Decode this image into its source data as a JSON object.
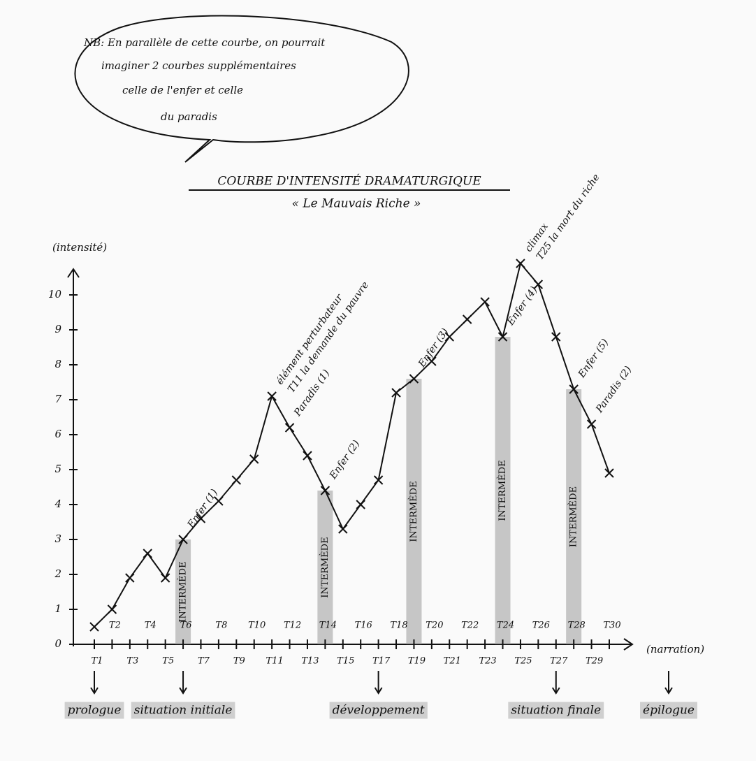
{
  "chart_data": {
    "type": "line",
    "note_lines": [
      "NB: En parallèle de cette courbe, on pourrait",
      "imaginer 2 courbes supplémentaires",
      "celle de l'enfer et celle",
      "du paradis"
    ],
    "title": "COURBE D'INTENSITÉ DRAMATURGIQUE",
    "subtitle": "« Le Mauvais Riche »",
    "y_label": "(intensité)",
    "x_label": "(narration)",
    "categories": [
      "T1",
      "T2",
      "T3",
      "T4",
      "T5",
      "T6",
      "T7",
      "T8",
      "T9",
      "T10",
      "T11",
      "T12",
      "T13",
      "T14",
      "T15",
      "T16",
      "T17",
      "T18",
      "T19",
      "T20",
      "T21",
      "T22",
      "T23",
      "T24",
      "T25",
      "T26",
      "T27",
      "T28",
      "T29",
      "T30"
    ],
    "values": [
      0.5,
      1.0,
      1.9,
      2.6,
      1.9,
      3.0,
      3.6,
      4.1,
      4.7,
      5.3,
      7.1,
      6.2,
      5.4,
      4.4,
      3.3,
      4.0,
      4.7,
      7.2,
      7.6,
      8.1,
      8.8,
      9.3,
      9.8,
      8.8,
      10.9,
      10.3,
      8.8,
      7.3,
      6.3,
      4.9
    ],
    "color": "#111111",
    "ylim": [
      0,
      11
    ],
    "yticks": [
      0,
      1,
      2,
      3,
      4,
      5,
      6,
      7,
      8,
      9,
      10
    ],
    "point_labels": [
      null,
      null,
      null,
      null,
      null,
      "Enfer (1)",
      null,
      null,
      null,
      null,
      [
        "élément perturbateur",
        "T11 la demande du pauvre"
      ],
      "Paradis (1)",
      null,
      "Enfer (2)",
      null,
      null,
      null,
      null,
      "Enfer (3)",
      null,
      null,
      null,
      null,
      "Enfer (4)",
      [
        "climax",
        "T25 la mort du riche"
      ],
      null,
      null,
      "Enfer (5)",
      "Paradis (2)",
      null
    ],
    "intermedes": [
      null,
      null,
      null,
      null,
      null,
      "INTERMÈDE",
      null,
      null,
      null,
      null,
      null,
      null,
      null,
      "INTERMÈDE",
      null,
      null,
      null,
      null,
      "INTERMÈDE",
      null,
      null,
      null,
      null,
      "INTERMÈDE",
      null,
      null,
      null,
      "INTERMÈDE",
      null,
      null
    ],
    "phase_labels": [
      "prologue",
      null,
      null,
      null,
      null,
      "situation initiale",
      null,
      null,
      null,
      null,
      null,
      null,
      null,
      null,
      null,
      null,
      "développement",
      null,
      null,
      null,
      null,
      null,
      null,
      null,
      null,
      null,
      "situation finale",
      null,
      null,
      "épilogue"
    ]
  }
}
